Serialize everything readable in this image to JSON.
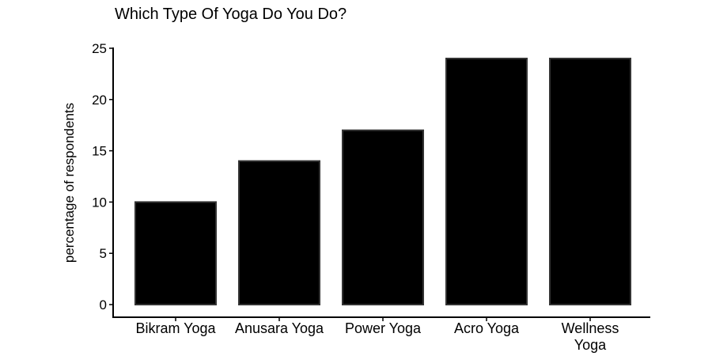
{
  "chart_data": {
    "type": "bar",
    "title": "Which Type Of Yoga Do You Do?",
    "xlabel": "",
    "ylabel": "percentage of respondents",
    "categories": [
      "Bikram Yoga",
      "Anusara Yoga",
      "Power Yoga",
      "Acro Yoga",
      "Wellness Yoga"
    ],
    "category_lines": [
      [
        "Bikram Yoga"
      ],
      [
        "Anusara Yoga"
      ],
      [
        "Power Yoga"
      ],
      [
        "Acro Yoga"
      ],
      [
        "Wellness",
        "Yoga"
      ]
    ],
    "values": [
      10,
      14,
      17,
      24,
      24
    ],
    "ylim": [
      0,
      25
    ],
    "yticks": [
      "0",
      "5",
      "10",
      "15",
      "20",
      "25"
    ],
    "grid": false,
    "legend": "none",
    "bar_color": "#000000",
    "bar_edge_color": "#333333"
  }
}
